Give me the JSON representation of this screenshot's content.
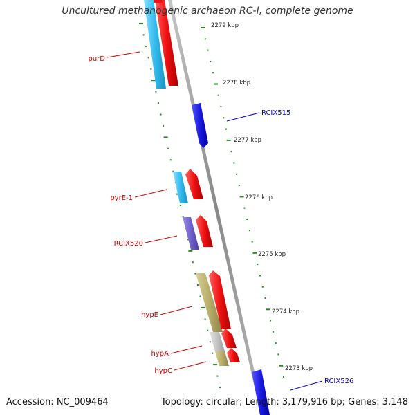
{
  "title": "Uncultured methanogenic archaeon RC-I, complete genome",
  "footer": {
    "accession": "Accession: NC_009464",
    "summary": "Topology: circular; Length: 3,179,916 bp; Genes: 3,148"
  },
  "scale_labels": [
    "2279 kbp",
    "2278 kbp",
    "2277 kbp",
    "2276 kbp",
    "2275 kbp",
    "2274 kbp",
    "2273 kbp"
  ],
  "gene_labels": [
    {
      "id": "purD",
      "text": "purD",
      "color": "#cc0000"
    },
    {
      "id": "RCIX515",
      "text": "RCIX515",
      "color": "#0000cc"
    },
    {
      "id": "pyrE-1",
      "text": "pyrE-1",
      "color": "#cc0000"
    },
    {
      "id": "RCIX520",
      "text": "RCIX520",
      "color": "#cc0000"
    },
    {
      "id": "hypE",
      "text": "hypE",
      "color": "#cc0000"
    },
    {
      "id": "hypA",
      "text": "hypA",
      "color": "#cc0000"
    },
    {
      "id": "hypC",
      "text": "hypC",
      "color": "#cc0000"
    },
    {
      "id": "RCIX526",
      "text": "RCIX526",
      "color": "#0000cc"
    }
  ],
  "colors": {
    "backbone": "#999999",
    "cds_forward": "#e01010",
    "cds_reverse": "#1a1ae0",
    "cog_cyan": "#33bbee",
    "cog_purple": "#7060cc",
    "cog_olive": "#b8ae6a",
    "cog_gray": "#c4c4c4",
    "ticks": "#228822"
  }
}
